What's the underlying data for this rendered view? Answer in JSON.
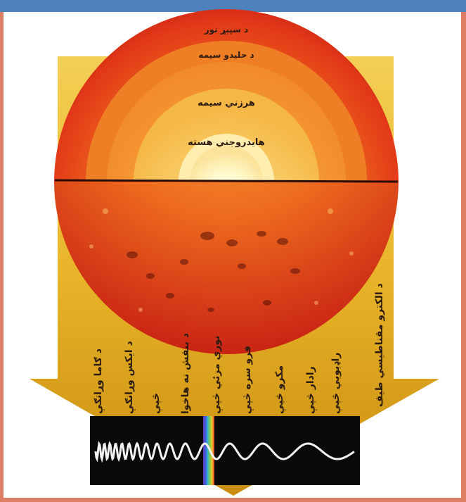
{
  "layers": {
    "photosphere": "د سپېړ نور",
    "convective": "د حلیدو سیمه",
    "radiative": "هرزني سیمه",
    "core": "هایدروجني هسته"
  },
  "spectrum": {
    "title": "د الکترو مقناطیسي طیف",
    "items": [
      "راډیويي څپې",
      "رادار څپې",
      "مکرو څپې",
      "فرو سره څپې",
      "نوري مرئي څپې",
      "د بنفش نه هاخوا",
      "څپې",
      "د ایکس وړانګې",
      "د ګاما وړانګې"
    ]
  },
  "colors": {
    "frame_top": "#4f81bd",
    "frame_side": "#dd7f65",
    "arrow": "#e8b428",
    "wave_bg": "#0a0a0a"
  }
}
